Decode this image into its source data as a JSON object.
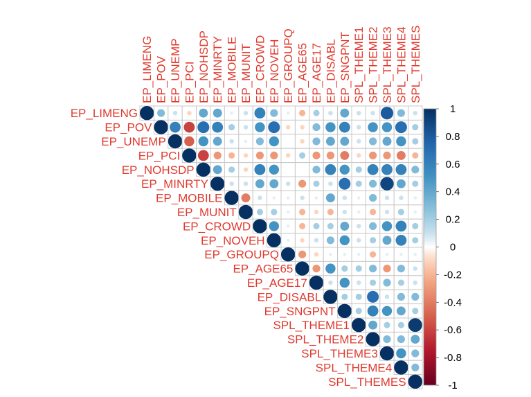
{
  "chart_data": {
    "type": "heatmap",
    "style": "upper-triangle circle correlogram",
    "variables": [
      "EP_LIMENG",
      "EP_POV",
      "EP_UNEMP",
      "EP_PCI",
      "EP_NOHSDP",
      "EP_MINRTY",
      "EP_MOBILE",
      "EP_MUNIT",
      "EP_CROWD",
      "EP_NOVEH",
      "EP_GROUPQ",
      "EP_AGE65",
      "EP_AGE17",
      "EP_DISABL",
      "EP_SNGPNT",
      "SPL_THEME1",
      "SPL_THEME2",
      "SPL_THEME3",
      "SPL_THEME4",
      "SPL_THEMES"
    ],
    "matrix": [
      [
        1,
        0.3,
        0.1,
        -0.1,
        0.4,
        0.4,
        0.05,
        0.1,
        0.6,
        0.3,
        0.05,
        -0.2,
        0.2,
        0.1,
        0.4,
        0.1,
        0.1,
        0.8,
        0.3,
        0.1
      ],
      [
        0.3,
        1,
        0.6,
        -0.6,
        0.7,
        0.6,
        0.2,
        0.1,
        0.5,
        0.7,
        -0.1,
        -0.1,
        0.3,
        0.5,
        0.6,
        0.1,
        0.5,
        0.5,
        0.7,
        0.2
      ],
      [
        0.1,
        0.6,
        1,
        -0.5,
        0.5,
        0.4,
        0.1,
        0.05,
        0.3,
        0.5,
        0,
        -0.1,
        0.3,
        0.4,
        0.4,
        0.1,
        0.3,
        0.4,
        0.5,
        0.2
      ],
      [
        -0.1,
        -0.6,
        -0.5,
        1,
        -0.6,
        -0.3,
        -0.2,
        -0.1,
        -0.3,
        -0.3,
        -0.1,
        0.2,
        -0.3,
        -0.3,
        -0.4,
        -0.1,
        -0.3,
        -0.3,
        -0.4,
        -0.2
      ],
      [
        0.4,
        0.7,
        0.5,
        -0.6,
        1,
        0.4,
        0.2,
        -0.1,
        0.6,
        0.5,
        0,
        0,
        0.3,
        0.6,
        0.5,
        0.2,
        0.6,
        0.6,
        0.6,
        0.3
      ],
      [
        0.4,
        0.6,
        0.4,
        -0.3,
        0.4,
        1,
        0.1,
        0.1,
        0.4,
        0.4,
        0.1,
        -0.3,
        0.2,
        0.1,
        0.7,
        0.2,
        0.3,
        0.9,
        0.4,
        0.2
      ],
      [
        0.05,
        0.2,
        0.1,
        -0.2,
        0.2,
        0.1,
        1,
        -0.4,
        0.1,
        0.05,
        0.05,
        0.1,
        0.05,
        0.4,
        0.1,
        0.05,
        0.3,
        0.1,
        0.1,
        0.05
      ],
      [
        0.1,
        0.1,
        0.05,
        -0.1,
        -0.1,
        0.1,
        -0.4,
        1,
        0.2,
        0.2,
        0.05,
        -0.2,
        -0.1,
        -0.2,
        0.1,
        0.05,
        -0.2,
        0.1,
        0.2,
        0.05
      ],
      [
        0.6,
        0.5,
        0.3,
        -0.3,
        0.6,
        0.4,
        0.1,
        0.2,
        1,
        0.5,
        0.05,
        -0.2,
        0.2,
        0.2,
        0.4,
        0.1,
        0.3,
        0.5,
        0.6,
        0.2
      ],
      [
        0.3,
        0.7,
        0.5,
        -0.3,
        0.5,
        0.4,
        0.05,
        0.2,
        0.5,
        1,
        0.05,
        -0.1,
        0.1,
        0.3,
        0.5,
        0.1,
        0.2,
        0.4,
        0.6,
        0.2
      ],
      [
        0.05,
        -0.1,
        0,
        -0.1,
        0,
        0.1,
        0.05,
        0.05,
        0.05,
        0.05,
        1,
        -0.3,
        -0.1,
        0.05,
        0.05,
        0.05,
        -0.2,
        0.05,
        0.05,
        0.05
      ],
      [
        -0.2,
        -0.1,
        -0.1,
        0.2,
        0,
        -0.3,
        0.1,
        -0.2,
        -0.2,
        -0.1,
        -0.3,
        1,
        -0.3,
        0.5,
        0.2,
        0.2,
        0.3,
        -0.3,
        0.3,
        0.1
      ],
      [
        0.2,
        0.3,
        0.3,
        -0.3,
        0.3,
        0.2,
        0.05,
        -0.1,
        0.2,
        0.1,
        -0.1,
        -0.3,
        1,
        0.1,
        0.5,
        0.1,
        0.2,
        0.3,
        0.2,
        0.1
      ],
      [
        0.1,
        0.5,
        0.4,
        -0.3,
        0.6,
        0.1,
        0.4,
        -0.2,
        0.2,
        0.3,
        0.05,
        0.5,
        0.1,
        1,
        0.2,
        0.2,
        0.7,
        0.1,
        0.3,
        0.3
      ],
      [
        0.4,
        0.6,
        0.4,
        -0.4,
        0.5,
        0.7,
        0.1,
        0.1,
        0.4,
        0.5,
        0.05,
        0.2,
        0.5,
        0.2,
        1,
        0.2,
        0.6,
        0.5,
        0.4,
        0.2
      ],
      [
        0.1,
        0.1,
        0.1,
        -0.1,
        0.2,
        0.2,
        0.05,
        0.05,
        0.1,
        0.1,
        0.05,
        0.2,
        0.1,
        0.2,
        0.2,
        1,
        0.4,
        0.2,
        0.2,
        0.95
      ],
      [
        0.1,
        0.5,
        0.3,
        -0.3,
        0.6,
        0.3,
        0.3,
        -0.2,
        0.3,
        0.2,
        -0.2,
        0.3,
        0.2,
        0.7,
        0.6,
        0.4,
        1,
        0.3,
        0.3,
        0.4
      ],
      [
        0.8,
        0.5,
        0.4,
        -0.3,
        0.6,
        0.9,
        0.1,
        0.1,
        0.5,
        0.4,
        0.05,
        -0.3,
        0.3,
        0.1,
        0.5,
        0.2,
        0.3,
        1,
        0.5,
        0.3
      ],
      [
        0.3,
        0.7,
        0.5,
        -0.4,
        0.6,
        0.4,
        0.1,
        0.2,
        0.6,
        0.6,
        0.05,
        0.3,
        0.2,
        0.3,
        0.4,
        0.2,
        0.3,
        0.5,
        1,
        0.3
      ],
      [
        0.1,
        0.2,
        0.2,
        -0.2,
        0.3,
        0.2,
        0.05,
        0.05,
        0.2,
        0.2,
        0.05,
        0.1,
        0.1,
        0.3,
        0.2,
        0.95,
        0.4,
        0.3,
        0.3,
        1
      ]
    ],
    "colorbar": {
      "ticks": [
        "1",
        "0.8",
        "0.6",
        "0.4",
        "0.2",
        "0",
        "-0.2",
        "-0.4",
        "-0.6",
        "-0.8",
        "-1"
      ],
      "range": [
        -1,
        1
      ],
      "low_color": "#67001f",
      "mid_color": "#ffffff",
      "high_color": "#053061"
    },
    "label_color": "#e03a2e",
    "grid_color": "#c8c8c8"
  }
}
